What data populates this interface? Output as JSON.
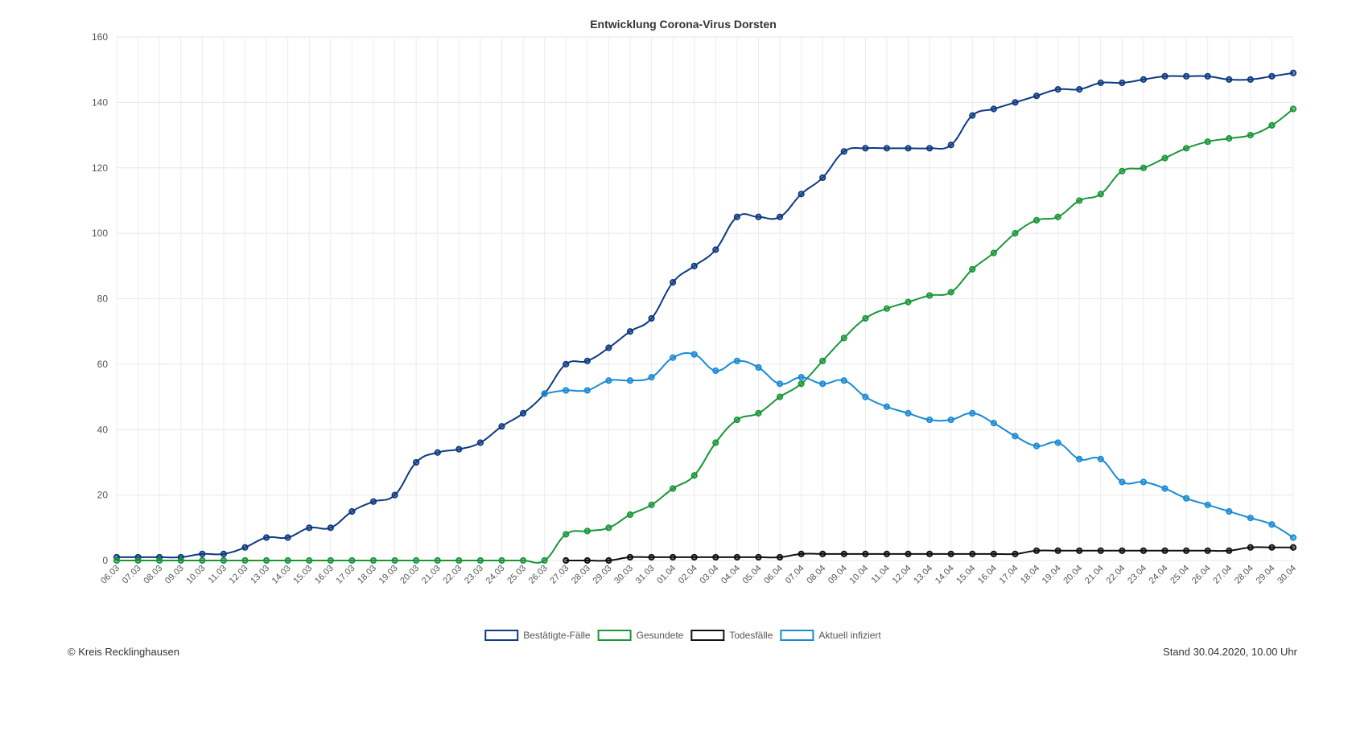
{
  "chart_data": {
    "type": "line",
    "title": "Entwicklung Corona-Virus Dorsten",
    "xlabel": "",
    "ylabel": "",
    "ylim": [
      0,
      160
    ],
    "yticks": [
      0,
      20,
      40,
      60,
      80,
      100,
      120,
      140,
      160
    ],
    "grid": true,
    "legend_position": "bottom",
    "categories": [
      "06.03",
      "07.03",
      "08.03",
      "09.03",
      "10.03",
      "11.03",
      "12.03",
      "13.03",
      "14.03",
      "15.03",
      "16.03",
      "17.03",
      "18.03",
      "19.03",
      "20.03",
      "21.03",
      "22.03",
      "23.03",
      "24.03",
      "25.03",
      "26.03",
      "27.03",
      "28.03",
      "29.03",
      "30.03",
      "31.03",
      "01.04",
      "02.04",
      "03.04",
      "04.04",
      "05.04",
      "06.04",
      "07.04",
      "08.04",
      "09.04",
      "10.04",
      "11.04",
      "12.04",
      "13.04",
      "14.04",
      "15.04",
      "16.04",
      "17.04",
      "18.04",
      "19.04",
      "20.04",
      "21.04",
      "22.04",
      "23.04",
      "24.04",
      "25.04",
      "26.04",
      "27.04",
      "28.04",
      "29.04",
      "30.04"
    ],
    "series": [
      {
        "name": "Bestätigte-Fälle",
        "color": "#0d3a80",
        "values": [
          1,
          1,
          1,
          1,
          2,
          2,
          4,
          7,
          7,
          10,
          10,
          15,
          18,
          20,
          30,
          33,
          34,
          36,
          41,
          45,
          51,
          60,
          61,
          65,
          70,
          74,
          85,
          90,
          95,
          105,
          105,
          105,
          112,
          117,
          125,
          126,
          126,
          126,
          126,
          127,
          136,
          138,
          140,
          142,
          144,
          144,
          146,
          146,
          147,
          148,
          148,
          148,
          147,
          147,
          148,
          149
        ]
      },
      {
        "name": "Gesundete",
        "color": "#1a9638",
        "values": [
          0,
          0,
          0,
          0,
          0,
          0,
          0,
          0,
          0,
          0,
          0,
          0,
          0,
          0,
          0,
          0,
          0,
          0,
          0,
          0,
          0,
          8,
          9,
          10,
          14,
          17,
          22,
          26,
          36,
          43,
          45,
          50,
          54,
          61,
          68,
          74,
          77,
          79,
          81,
          82,
          89,
          94,
          100,
          104,
          105,
          110,
          112,
          119,
          120,
          123,
          126,
          128,
          129,
          130,
          133,
          138
        ]
      },
      {
        "name": "Todesfälle",
        "color": "#111111",
        "values": [
          null,
          null,
          null,
          null,
          null,
          null,
          null,
          null,
          null,
          null,
          null,
          null,
          null,
          null,
          null,
          null,
          null,
          null,
          null,
          null,
          null,
          0,
          0,
          0,
          1,
          1,
          1,
          1,
          1,
          1,
          1,
          1,
          2,
          2,
          2,
          2,
          2,
          2,
          2,
          2,
          2,
          2,
          2,
          3,
          3,
          3,
          3,
          3,
          3,
          3,
          3,
          3,
          3,
          4,
          4,
          4
        ]
      },
      {
        "name": "Aktuell infiziert",
        "color": "#1a8ad4",
        "values": [
          null,
          null,
          null,
          null,
          null,
          null,
          null,
          null,
          null,
          null,
          null,
          null,
          null,
          null,
          null,
          null,
          null,
          null,
          null,
          null,
          51,
          52,
          52,
          55,
          55,
          56,
          62,
          63,
          58,
          61,
          59,
          54,
          56,
          54,
          55,
          50,
          47,
          45,
          43,
          43,
          45,
          42,
          38,
          35,
          36,
          31,
          31,
          24,
          24,
          22,
          19,
          17,
          15,
          13,
          11,
          7
        ]
      }
    ]
  },
  "footer": {
    "copyright": "© Kreis Recklinghausen",
    "stand": "Stand 30.04.2020, 10.00 Uhr"
  }
}
